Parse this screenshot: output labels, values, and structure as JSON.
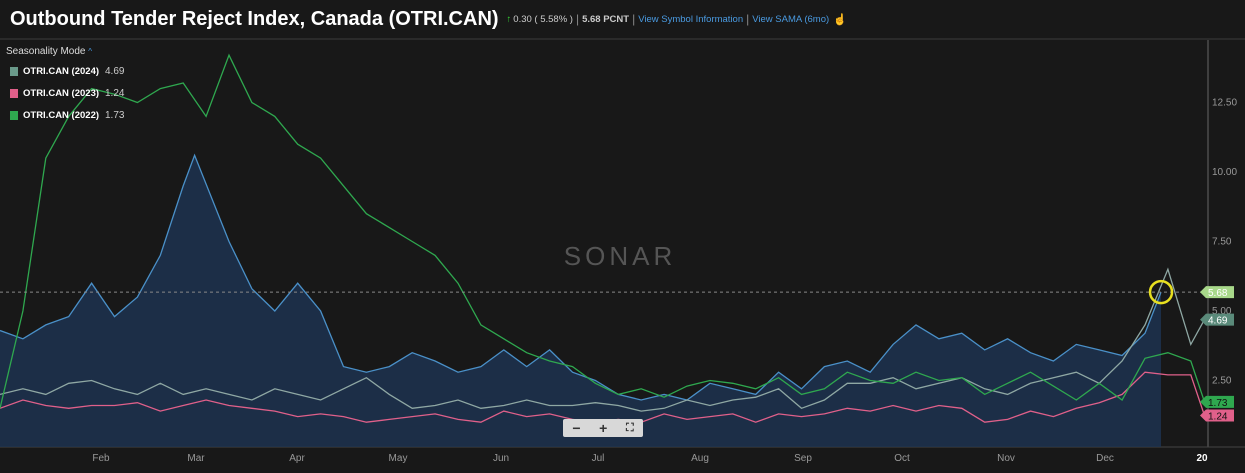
{
  "header": {
    "title": "Outbound Tender Reject Index, Canada (OTRI.CAN)",
    "change_icon": "arrow-up-icon",
    "change": "0.30 ( 5.58% )",
    "value": "5.68 PCNT",
    "link_info": "View Symbol Information",
    "link_sama": "View SAMA (6mo)",
    "sama_icon": "hand-pointer-icon"
  },
  "legend": {
    "mode": "Seasonality Mode",
    "items": [
      {
        "name": "OTRI.CAN (2024)",
        "value": "4.69",
        "color": "#6a9a8a"
      },
      {
        "name": "OTRI.CAN (2023)",
        "value": "1.24",
        "color": "#e0608a"
      },
      {
        "name": "OTRI.CAN (2022)",
        "value": "1.73",
        "color": "#2fa84f"
      }
    ]
  },
  "watermark": "SONAR",
  "zoom_controls": {
    "minus": "−",
    "plus": "+",
    "fit": "⛶"
  },
  "chart_data": {
    "type": "line",
    "x_unit": "week of year",
    "x_tick_labels": [
      "Feb",
      "Mar",
      "Apr",
      "May",
      "Jun",
      "Jul",
      "Aug",
      "Sep",
      "Oct",
      "Nov",
      "Dec",
      "20"
    ],
    "y_tick_labels": [
      "2.50",
      "5.00",
      "7.50",
      "10.00",
      "12.50"
    ],
    "ylim": [
      0,
      15
    ],
    "grid": false,
    "current_value_label": "5.68",
    "series": [
      {
        "key": "current",
        "color": "#4a90c8",
        "area": true,
        "x": [
          0,
          1,
          2,
          3,
          4,
          5,
          6,
          7,
          8,
          8.5,
          10,
          11,
          12,
          13,
          14,
          15,
          16,
          17,
          18,
          19,
          20,
          21,
          22,
          23,
          24,
          25,
          26,
          27,
          28,
          29,
          30,
          31,
          32,
          33,
          34,
          35,
          36,
          37,
          38,
          39,
          40,
          41,
          42,
          43,
          44,
          45,
          46,
          47,
          48,
          49,
          50,
          50.7
        ],
        "values": [
          4.3,
          4.0,
          4.5,
          4.8,
          6.0,
          4.8,
          5.5,
          7.0,
          9.5,
          10.6,
          7.5,
          5.8,
          5.0,
          6.0,
          5.0,
          3.0,
          2.8,
          3.0,
          3.5,
          3.2,
          2.8,
          3.0,
          3.6,
          3.0,
          3.6,
          2.8,
          2.5,
          2.0,
          1.8,
          2.0,
          1.8,
          2.4,
          2.2,
          2.0,
          2.8,
          2.2,
          3.0,
          3.2,
          2.8,
          3.8,
          4.5,
          4.0,
          4.2,
          3.6,
          4.0,
          3.5,
          3.2,
          3.8,
          3.6,
          3.4,
          4.2,
          5.68
        ]
      },
      {
        "name": "OTRI.CAN (2024)",
        "color": "#8fa8a4",
        "x": [
          0,
          1,
          2,
          3,
          4,
          5,
          6,
          7,
          8,
          9,
          10,
          11,
          12,
          13,
          14,
          15,
          16,
          17,
          18,
          19,
          20,
          21,
          22,
          23,
          24,
          25,
          26,
          27,
          28,
          29,
          30,
          31,
          32,
          33,
          34,
          35,
          36,
          37,
          38,
          39,
          40,
          41,
          42,
          43,
          44,
          45,
          46,
          47,
          48,
          49,
          50,
          51,
          52,
          52.6
        ],
        "values": [
          2.0,
          2.2,
          2.0,
          2.4,
          2.5,
          2.2,
          2.0,
          2.4,
          2.0,
          2.2,
          2.0,
          1.8,
          2.2,
          2.0,
          1.8,
          2.2,
          2.6,
          2.0,
          1.5,
          1.6,
          1.8,
          1.5,
          1.6,
          1.8,
          1.6,
          1.6,
          1.7,
          1.6,
          1.4,
          1.5,
          1.8,
          1.6,
          1.8,
          1.9,
          2.2,
          1.5,
          1.8,
          2.4,
          2.4,
          2.6,
          2.2,
          2.4,
          2.6,
          2.2,
          2.0,
          2.4,
          2.6,
          2.8,
          2.4,
          3.2,
          4.5,
          6.5,
          3.8,
          4.69
        ]
      },
      {
        "name": "OTRI.CAN (2023)",
        "color": "#e0608a",
        "x": [
          0,
          1,
          2,
          3,
          4,
          5,
          6,
          7,
          8,
          9,
          10,
          11,
          12,
          13,
          14,
          15,
          16,
          17,
          18,
          19,
          20,
          21,
          22,
          23,
          24,
          25,
          26,
          27,
          28,
          29,
          30,
          31,
          32,
          33,
          34,
          35,
          36,
          37,
          38,
          39,
          40,
          41,
          42,
          43,
          44,
          45,
          46,
          47,
          48,
          49,
          50,
          51,
          52,
          52.6
        ],
        "values": [
          1.5,
          1.8,
          1.6,
          1.5,
          1.6,
          1.6,
          1.7,
          1.4,
          1.6,
          1.8,
          1.6,
          1.5,
          1.4,
          1.2,
          1.3,
          1.2,
          1.0,
          1.1,
          1.2,
          1.3,
          1.1,
          1.0,
          1.4,
          1.2,
          1.3,
          1.1,
          1.0,
          1.1,
          1.0,
          1.3,
          1.1,
          1.2,
          1.3,
          1.0,
          1.3,
          1.2,
          1.3,
          1.5,
          1.4,
          1.6,
          1.4,
          1.6,
          1.5,
          1.0,
          1.1,
          1.4,
          1.2,
          1.5,
          1.7,
          2.0,
          2.8,
          2.7,
          2.7,
          1.24
        ]
      },
      {
        "name": "OTRI.CAN (2022)",
        "color": "#2fa84f",
        "x": [
          0,
          1,
          2,
          3,
          4,
          5,
          6,
          7,
          8,
          9,
          10,
          11,
          12,
          13,
          14,
          15,
          16,
          17,
          18,
          19,
          20,
          21,
          22,
          23,
          24,
          25,
          26,
          27,
          28,
          29,
          30,
          31,
          32,
          33,
          34,
          35,
          36,
          37,
          38,
          39,
          40,
          41,
          42,
          43,
          44,
          45,
          46,
          47,
          48,
          49,
          50,
          51,
          52,
          52.6
        ],
        "values": [
          1.5,
          5.0,
          10.5,
          12.0,
          13.0,
          12.8,
          12.5,
          13.0,
          13.2,
          12.0,
          14.2,
          12.5,
          12.0,
          11.0,
          10.5,
          9.5,
          8.5,
          8.0,
          7.5,
          7.0,
          6.0,
          4.5,
          4.0,
          3.5,
          3.2,
          3.0,
          2.4,
          2.0,
          2.2,
          1.9,
          2.3,
          2.5,
          2.4,
          2.2,
          2.6,
          2.0,
          2.2,
          2.8,
          2.5,
          2.4,
          2.8,
          2.5,
          2.6,
          2.0,
          2.4,
          2.8,
          2.3,
          1.8,
          2.4,
          1.8,
          3.3,
          3.5,
          3.2,
          1.73
        ]
      }
    ]
  }
}
